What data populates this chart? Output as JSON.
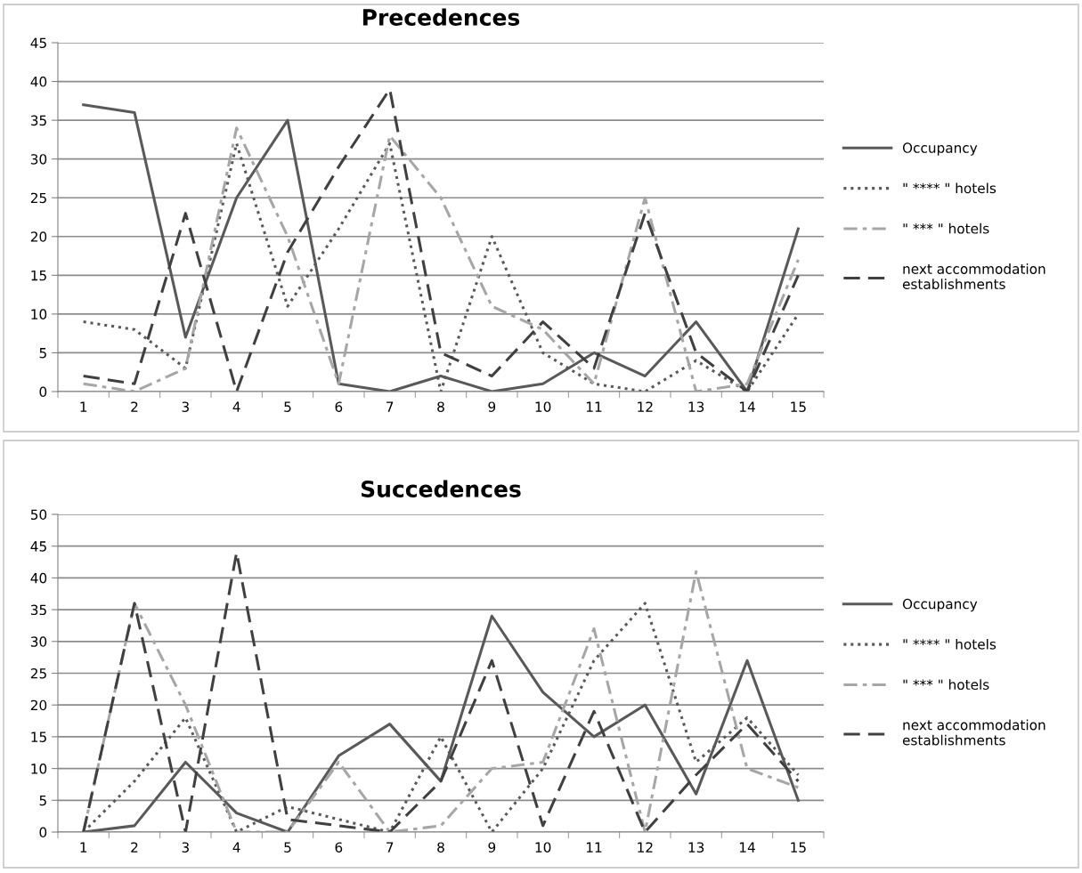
{
  "chart_data": [
    {
      "type": "line",
      "title": "Precedences",
      "categories": [
        "1",
        "2",
        "3",
        "4",
        "5",
        "6",
        "7",
        "8",
        "9",
        "10",
        "11",
        "12",
        "13",
        "14",
        "15"
      ],
      "ylim": [
        0,
        45
      ],
      "yticks": [
        0,
        5,
        10,
        15,
        20,
        25,
        30,
        35,
        40,
        45
      ],
      "grid": "y",
      "legend": "right",
      "series": [
        {
          "name": "Occupancy",
          "color": "#595959",
          "line_style": "solid",
          "values": [
            37,
            36,
            7,
            25,
            35,
            1,
            0,
            2,
            0,
            1,
            5,
            2,
            9,
            0,
            21
          ]
        },
        {
          "name": "\" **** \" hotels",
          "color": "#595959",
          "line_style": "dotted",
          "values": [
            9,
            8,
            3,
            32,
            11,
            21,
            32,
            0,
            20,
            5,
            1,
            0,
            4,
            0,
            10
          ]
        },
        {
          "name": "\" *** \" hotels",
          "color": "#a6a6a6",
          "line_style": "dashdot",
          "values": [
            1,
            0,
            3,
            34,
            20,
            1,
            33,
            25,
            11,
            8,
            1,
            25,
            0,
            1,
            17
          ]
        },
        {
          "name": "next accommodation\nestablishments",
          "color": "#404040",
          "line_style": "dashed",
          "values": [
            2,
            1,
            23,
            0,
            18,
            29,
            39,
            5,
            2,
            9,
            3,
            23,
            5,
            0,
            15
          ]
        }
      ]
    },
    {
      "type": "line",
      "title": "Succedences",
      "categories": [
        "1",
        "2",
        "3",
        "4",
        "5",
        "6",
        "7",
        "8",
        "9",
        "10",
        "11",
        "12",
        "13",
        "14",
        "15"
      ],
      "ylim": [
        0,
        50
      ],
      "yticks": [
        0,
        5,
        10,
        15,
        20,
        25,
        30,
        35,
        40,
        45,
        50
      ],
      "grid": "y",
      "legend": "right",
      "series": [
        {
          "name": "Occupancy",
          "color": "#595959",
          "line_style": "solid",
          "values": [
            0,
            1,
            11,
            3,
            0,
            12,
            17,
            8,
            34,
            22,
            15,
            20,
            6,
            27,
            5
          ]
        },
        {
          "name": "\" **** \" hotels",
          "color": "#595959",
          "line_style": "dotted",
          "values": [
            0,
            8,
            18,
            0,
            4,
            2,
            0,
            15,
            0,
            10,
            27,
            36,
            11,
            18,
            9
          ]
        },
        {
          "name": "\" *** \" hotels",
          "color": "#a6a6a6",
          "line_style": "dashdot",
          "values": [
            0,
            36,
            20,
            0,
            0,
            11,
            0,
            1,
            10,
            11,
            32,
            0,
            41,
            10,
            7
          ]
        },
        {
          "name": "next accommodation\nestablishments",
          "color": "#404040",
          "line_style": "dashed",
          "values": [
            0,
            36,
            0,
            44,
            2,
            1,
            0,
            8,
            27,
            1,
            19,
            0,
            9,
            17,
            8
          ]
        }
      ]
    }
  ]
}
